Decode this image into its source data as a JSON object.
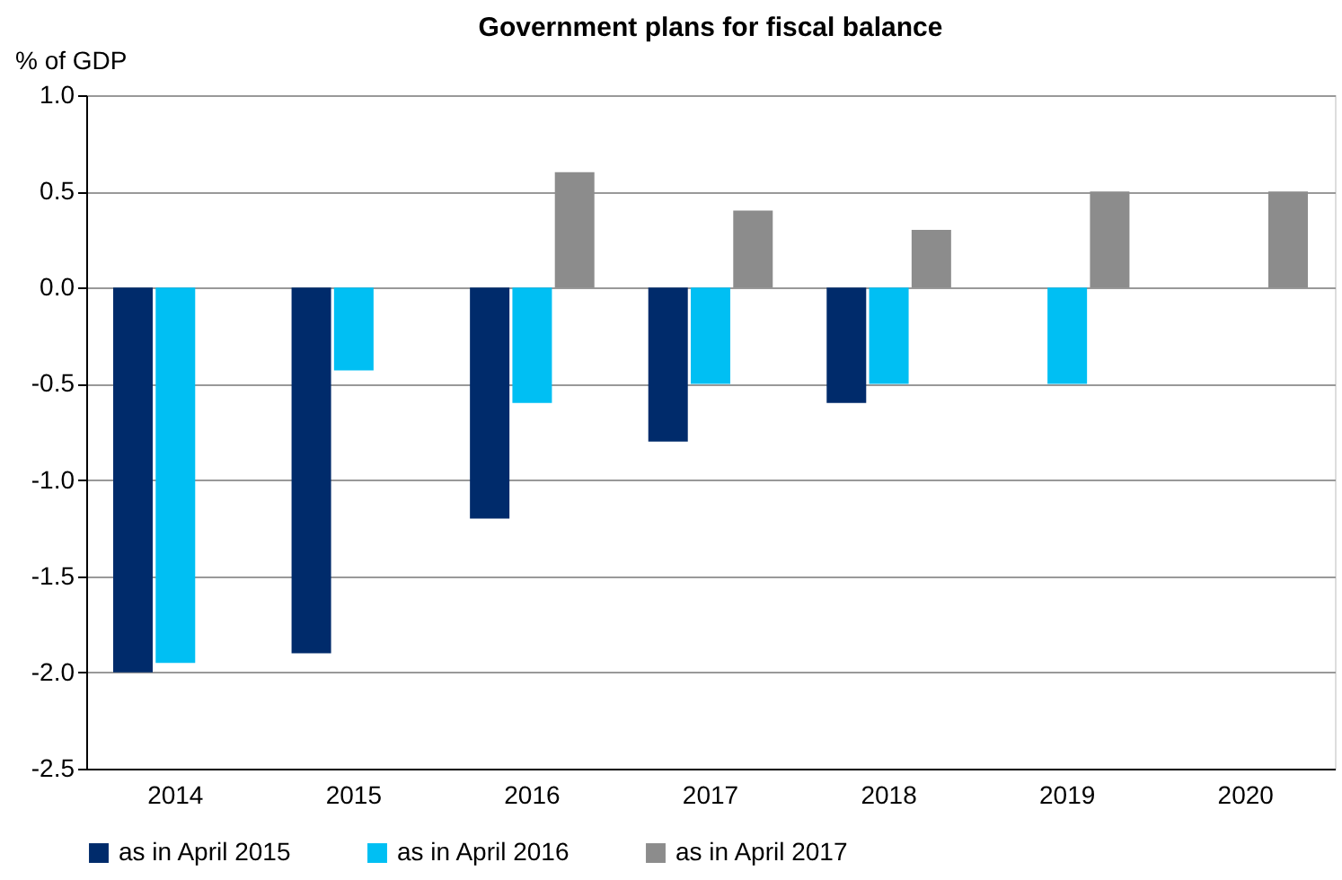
{
  "chart_data": {
    "type": "bar",
    "title": "Government plans for fiscal balance",
    "ylabel": "% of GDP",
    "categories": [
      "2014",
      "2015",
      "2016",
      "2017",
      "2018",
      "2019",
      "2020"
    ],
    "series": [
      {
        "name": "as in April 2015",
        "color": "#002b6b",
        "values": [
          -2.0,
          -1.9,
          -1.2,
          -0.8,
          -0.6,
          null,
          null
        ]
      },
      {
        "name": "as in April 2016",
        "color": "#00bff3",
        "values": [
          -1.95,
          -0.43,
          -0.6,
          -0.5,
          -0.5,
          -0.5,
          null
        ]
      },
      {
        "name": "as in April 2017",
        "color": "#8c8c8c",
        "values": [
          null,
          null,
          0.6,
          0.4,
          0.3,
          0.5,
          0.5
        ]
      }
    ],
    "ylim": [
      -2.5,
      1.0
    ],
    "yticks": [
      {
        "value": -2.5,
        "label": "-2.5"
      },
      {
        "value": -2.0,
        "label": "-2.0"
      },
      {
        "value": -1.5,
        "label": "-1.5"
      },
      {
        "value": -1.0,
        "label": "-1.0"
      },
      {
        "value": -0.5,
        "label": "-0.5"
      },
      {
        "value": 0.0,
        "label": "0.0"
      },
      {
        "value": 0.5,
        "label": "0.5"
      },
      {
        "value": 1.0,
        "label": "1.0"
      }
    ],
    "grid": "y",
    "legend": "bottom"
  }
}
